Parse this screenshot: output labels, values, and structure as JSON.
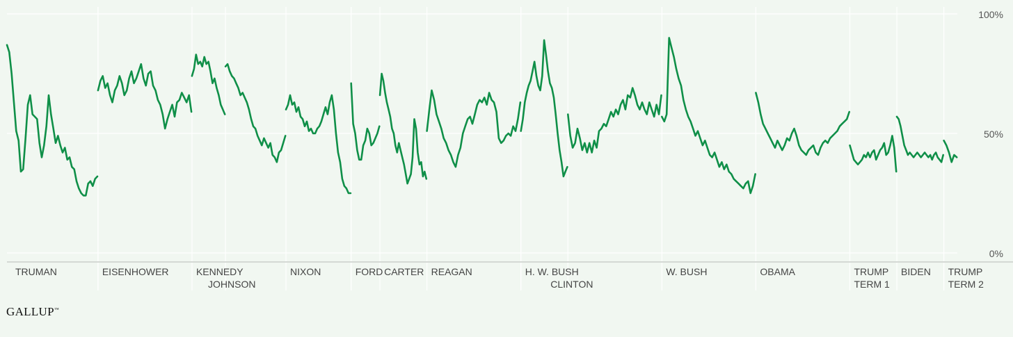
{
  "brand": {
    "logo_text": "GALLUP"
  },
  "colors": {
    "line": "#0f8f48",
    "background": "#f1f7f1",
    "grid": "#ffffff"
  },
  "chart_data": {
    "type": "line",
    "title": "",
    "xlabel": "",
    "ylabel": "",
    "ylim": [
      0,
      100
    ],
    "yticks": [
      {
        "value": 100,
        "label": "100%"
      },
      {
        "value": 50,
        "label": "50%"
      },
      {
        "value": 0,
        "label": "0%"
      }
    ],
    "grid": true,
    "legend": "none",
    "presidencies": [
      {
        "label": [
          "TRUMAN"
        ],
        "start": 1945.3,
        "end": 1953.05,
        "values": [
          87,
          84,
          75,
          63,
          51,
          47,
          34,
          35,
          48,
          62,
          66,
          58,
          57,
          56,
          46,
          40,
          45,
          53,
          66,
          58,
          52,
          46,
          49,
          45,
          42,
          44,
          39,
          40,
          36,
          35,
          30,
          27,
          25,
          24,
          24,
          29,
          30,
          28,
          31,
          32
        ]
      },
      {
        "label": [
          "EISENHOWER"
        ],
        "start": 1953.05,
        "end": 1961.05,
        "values": [
          68,
          72,
          74,
          69,
          71,
          66,
          63,
          68,
          70,
          74,
          71,
          66,
          68,
          73,
          76,
          71,
          73,
          76,
          79,
          73,
          70,
          75,
          76,
          70,
          68,
          64,
          62,
          58,
          52,
          56,
          59,
          62,
          57,
          63,
          64,
          67,
          65,
          63,
          66,
          59
        ]
      },
      {
        "label": [
          "KENNEDY"
        ],
        "start": 1961.05,
        "end": 1963.9,
        "values": [
          74,
          77,
          83,
          79,
          80,
          78,
          82,
          79,
          80,
          76,
          71,
          73,
          69,
          66,
          62,
          60,
          58
        ]
      },
      {
        "label": [
          "JOHNSON"
        ],
        "start": 1963.9,
        "end": 1969.05,
        "values": [
          78,
          79,
          76,
          74,
          73,
          71,
          69,
          66,
          67,
          65,
          63,
          60,
          56,
          53,
          52,
          49,
          47,
          45,
          48,
          46,
          44,
          46,
          41,
          40,
          38,
          42,
          43,
          46,
          49
        ]
      },
      {
        "label": [
          "NIXON"
        ],
        "start": 1969.05,
        "end": 1974.6,
        "values": [
          60,
          62,
          66,
          62,
          63,
          59,
          61,
          57,
          56,
          53,
          55,
          51,
          52,
          50,
          50,
          52,
          53,
          55,
          58,
          61,
          58,
          63,
          66,
          60,
          50,
          42,
          38,
          31,
          28,
          27,
          25,
          25
        ]
      },
      {
        "label": [
          "FORD"
        ],
        "start": 1974.6,
        "end": 1977.05,
        "values": [
          71,
          54,
          50,
          43,
          39,
          39,
          45,
          47,
          52,
          50,
          45,
          46,
          48,
          50,
          53
        ]
      },
      {
        "label": [
          "CARTER"
        ],
        "start": 1977.05,
        "end": 1981.05,
        "values": [
          66,
          75,
          72,
          67,
          63,
          60,
          57,
          52,
          50,
          45,
          42,
          46,
          43,
          40,
          37,
          33,
          29,
          31,
          33,
          40,
          56,
          52,
          42,
          37,
          38,
          32,
          34,
          31
        ]
      },
      {
        "label": [
          "REAGAN"
        ],
        "start": 1981.05,
        "end": 1989.05,
        "values": [
          51,
          60,
          68,
          64,
          58,
          55,
          52,
          48,
          46,
          43,
          41,
          38,
          36,
          41,
          44,
          50,
          53,
          56,
          57,
          54,
          58,
          62,
          64,
          63,
          65,
          62,
          67,
          64,
          63,
          59,
          48,
          46,
          47,
          49,
          50,
          49,
          53,
          51,
          56,
          63
        ]
      },
      {
        "label": [
          "H. W. BUSH"
        ],
        "start": 1989.05,
        "end": 1993.05,
        "values": [
          51,
          56,
          63,
          67,
          70,
          72,
          76,
          80,
          74,
          70,
          68,
          74,
          89,
          83,
          76,
          71,
          69,
          65,
          58,
          50,
          43,
          38,
          32,
          34,
          36
        ]
      },
      {
        "label": [
          "CLINTON"
        ],
        "start": 1993.05,
        "end": 2001.05,
        "values": [
          58,
          49,
          44,
          46,
          52,
          48,
          43,
          46,
          42,
          46,
          42,
          47,
          44,
          51,
          52,
          54,
          53,
          56,
          59,
          57,
          60,
          58,
          62,
          64,
          60,
          66,
          65,
          69,
          66,
          62,
          60,
          63,
          60,
          58,
          63,
          60,
          57,
          62,
          58,
          66
        ]
      },
      {
        "label": [
          "W. BUSH"
        ],
        "start": 2001.05,
        "end": 2009.05,
        "values": [
          57,
          55,
          58,
          90,
          86,
          82,
          77,
          73,
          70,
          64,
          60,
          57,
          55,
          52,
          49,
          51,
          48,
          45,
          47,
          44,
          41,
          40,
          42,
          39,
          36,
          38,
          35,
          37,
          34,
          33,
          31,
          30,
          29,
          28,
          27,
          29,
          30,
          25,
          28,
          33
        ]
      },
      {
        "label": [
          "OBAMA"
        ],
        "start": 2009.05,
        "end": 2017.05,
        "values": [
          67,
          63,
          58,
          54,
          52,
          50,
          48,
          46,
          44,
          47,
          45,
          43,
          45,
          48,
          47,
          50,
          52,
          49,
          45,
          43,
          42,
          41,
          43,
          44,
          45,
          42,
          41,
          44,
          46,
          47,
          46,
          48,
          49,
          50,
          51,
          53,
          54,
          55,
          56,
          59
        ]
      },
      {
        "label": [
          "TRUMP",
          "TERM 1"
        ],
        "start": 2017.05,
        "end": 2021.05,
        "values": [
          45,
          42,
          39,
          38,
          37,
          38,
          39,
          41,
          40,
          42,
          40,
          42,
          43,
          39,
          41,
          43,
          44,
          46,
          41,
          42,
          45,
          49,
          44,
          34
        ]
      },
      {
        "label": [
          "BIDEN"
        ],
        "start": 2021.05,
        "end": 2025.05,
        "values": [
          57,
          56,
          53,
          49,
          45,
          43,
          41,
          42,
          41,
          40,
          41,
          42,
          41,
          40,
          41,
          42,
          41,
          40,
          41,
          39,
          41,
          42,
          40,
          39,
          38,
          41
        ]
      },
      {
        "label": [
          "TRUMP",
          "TERM 2"
        ],
        "start": 2025.05,
        "end": 2026.2,
        "values": [
          47,
          45,
          42,
          38,
          41,
          40
        ]
      }
    ]
  }
}
